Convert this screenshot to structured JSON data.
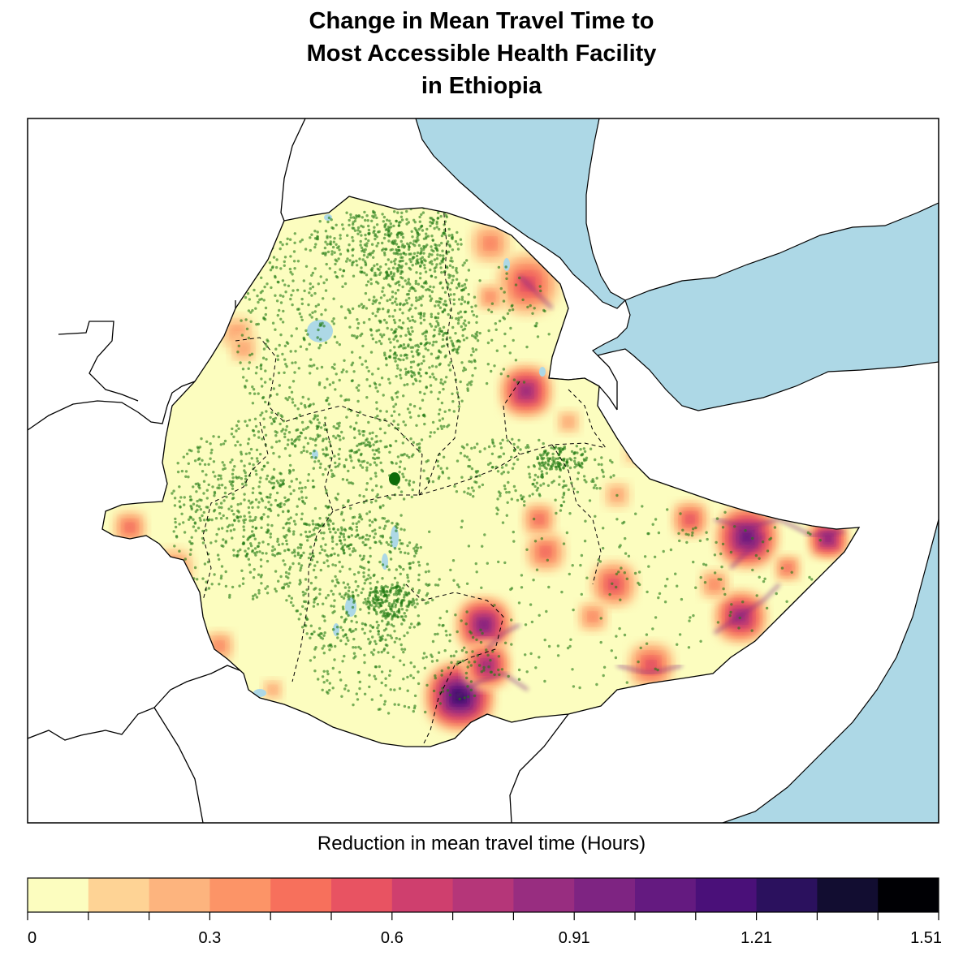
{
  "title": {
    "line1": "Change in Mean Travel Time to",
    "line2": "Most Accessible Health Facility",
    "line3": "in Ethiopia"
  },
  "legend": {
    "title": "Reduction in mean travel time (Hours)",
    "min": 0,
    "max": 1.51,
    "colors": [
      "#fcfdbf",
      "#fed395",
      "#fdb47e",
      "#fc9467",
      "#f7705c",
      "#e85362",
      "#cf3f6e",
      "#b53679",
      "#982d80",
      "#7e2482",
      "#641a80",
      "#4a1079",
      "#2b115e",
      "#120d31",
      "#000004"
    ],
    "tick_labels": [
      "0",
      "",
      "",
      "0.3",
      "",
      "",
      "0.6",
      "",
      "",
      "0.91",
      "",
      "",
      "1.21",
      "",
      "",
      "1.51"
    ]
  },
  "colors": {
    "sea": "#add8e6",
    "land": "#ffffff",
    "ethiopia_base": "#fcfdbf",
    "facility_dot": "#1f7a12",
    "border": "#000000"
  },
  "map_features": {
    "facility_points": "green dots = health facilities",
    "hotspots": "orange to purple zones of higher travel-time reduction"
  }
}
